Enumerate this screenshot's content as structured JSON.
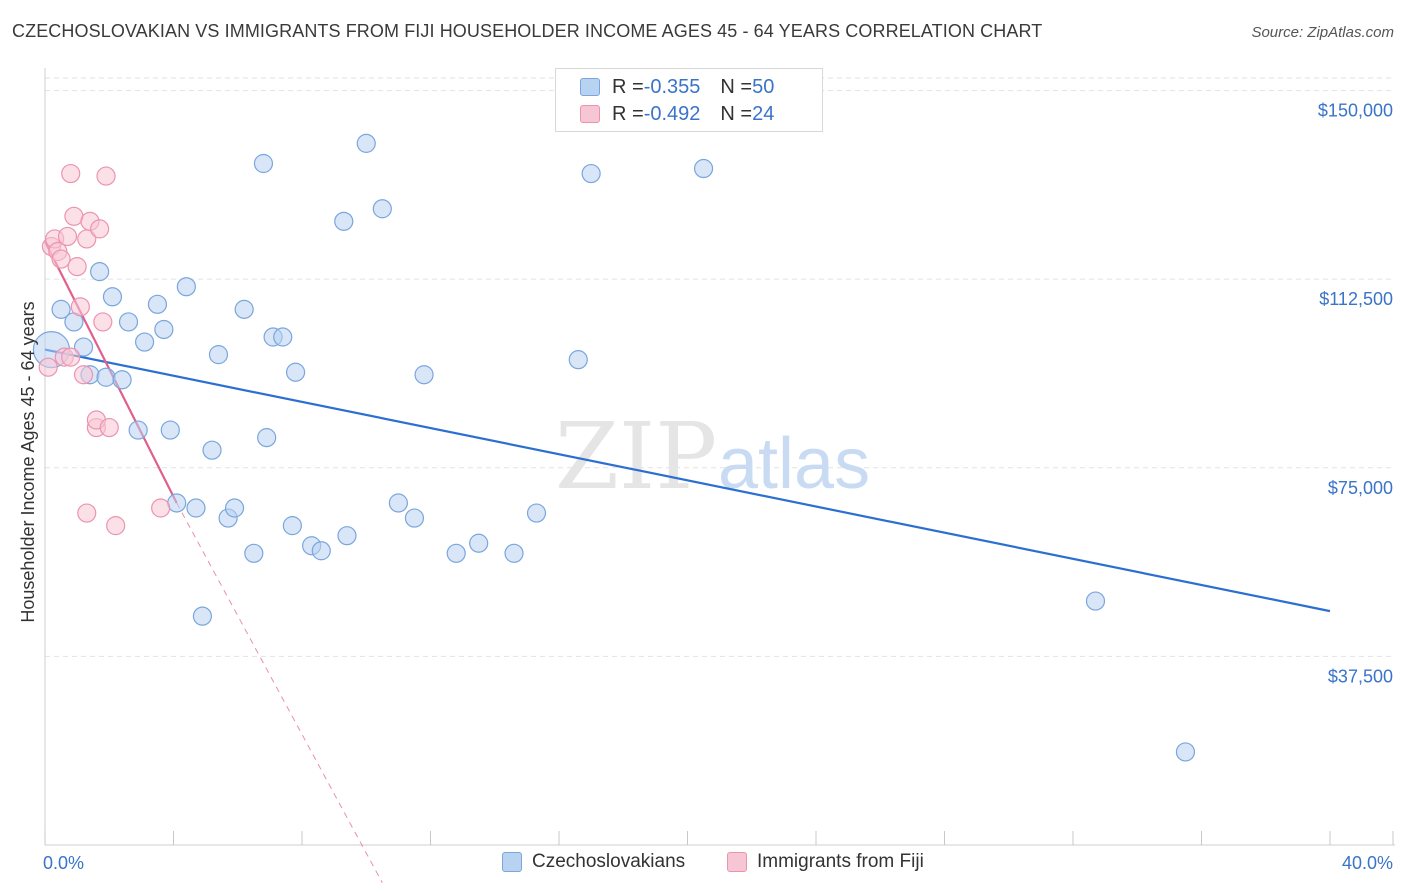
{
  "title": "CZECHOSLOVAKIAN VS IMMIGRANTS FROM FIJI HOUSEHOLDER INCOME AGES 45 - 64 YEARS CORRELATION CHART",
  "source": "Source: ZipAtlas.com",
  "watermark": {
    "zip": "ZIP",
    "atlas": "atlas"
  },
  "colors": {
    "blue_fill": "#b8d2f2",
    "blue_stroke": "#7aa6dc",
    "blue_line": "#2b6fd1",
    "pink_fill": "#f7c6d5",
    "pink_stroke": "#ec93b0",
    "pink_line": "#e0608c",
    "axis_text": "#3a74c9",
    "grid": "#e2e2e2"
  },
  "legend": {
    "series1": {
      "r_label": "R = ",
      "r_value": "-0.355",
      "n_label": "N = ",
      "n_value": "50"
    },
    "series2": {
      "r_label": "R = ",
      "r_value": "-0.492",
      "n_label": "N = ",
      "n_value": "24"
    }
  },
  "bottom_legend": {
    "series1": "Czechoslovakians",
    "series2": "Immigrants from Fiji"
  },
  "chart_data": {
    "type": "scatter",
    "ylabel": "Householder Income Ages 45 - 64 years",
    "xlabel": "",
    "xlim": [
      0,
      40
    ],
    "ylim": [
      0,
      152500
    ],
    "x_tick_labels": [
      "0.0%",
      "40.0%"
    ],
    "x_tick_marks": [
      0,
      4,
      8,
      12,
      16,
      20,
      24,
      28,
      32,
      36,
      40
    ],
    "y_ticks": [
      {
        "value": 150000,
        "label": "$150,000"
      },
      {
        "value": 112500,
        "label": "$112,500"
      },
      {
        "value": 75000,
        "label": "$75,000"
      },
      {
        "value": 37500,
        "label": "$37,500"
      }
    ],
    "series": [
      {
        "name": "Czechoslovakians",
        "color": "blue",
        "points": [
          [
            0.2,
            98500,
            24
          ],
          [
            0.5,
            106500,
            12
          ],
          [
            0.9,
            104000,
            12
          ],
          [
            1.2,
            99000,
            12
          ],
          [
            1.4,
            93500,
            12
          ],
          [
            1.7,
            114000,
            12
          ],
          [
            1.9,
            93000,
            12
          ],
          [
            2.1,
            109000,
            12
          ],
          [
            2.4,
            92500,
            12
          ],
          [
            2.6,
            104000,
            12
          ],
          [
            2.9,
            82500,
            12
          ],
          [
            3.1,
            100000,
            12
          ],
          [
            3.5,
            107500,
            12
          ],
          [
            3.7,
            102500,
            12
          ],
          [
            3.9,
            82500,
            12
          ],
          [
            4.1,
            68000,
            12
          ],
          [
            4.4,
            111000,
            12
          ],
          [
            4.7,
            67000,
            12
          ],
          [
            4.9,
            45500,
            12
          ],
          [
            5.2,
            78500,
            12
          ],
          [
            5.4,
            97500,
            12
          ],
          [
            5.7,
            65000,
            12
          ],
          [
            5.9,
            67000,
            12
          ],
          [
            6.2,
            106500,
            12
          ],
          [
            6.5,
            58000,
            12
          ],
          [
            6.8,
            135500,
            12
          ],
          [
            6.9,
            81000,
            12
          ],
          [
            7.1,
            101000,
            12
          ],
          [
            7.4,
            101000,
            12
          ],
          [
            7.7,
            63500,
            12
          ],
          [
            7.8,
            94000,
            12
          ],
          [
            8.3,
            59500,
            12
          ],
          [
            8.6,
            58500,
            12
          ],
          [
            9.3,
            124000,
            12
          ],
          [
            9.4,
            61500,
            12
          ],
          [
            10.0,
            139500,
            12
          ],
          [
            10.5,
            126500,
            12
          ],
          [
            11.0,
            68000,
            12
          ],
          [
            11.5,
            65000,
            12
          ],
          [
            11.8,
            93500,
            12
          ],
          [
            12.8,
            58000,
            12
          ],
          [
            13.5,
            60000,
            12
          ],
          [
            14.6,
            58000,
            12
          ],
          [
            15.3,
            66000,
            12
          ],
          [
            16.6,
            96500,
            12
          ],
          [
            17.0,
            133500,
            12
          ],
          [
            20.5,
            134500,
            12
          ],
          [
            32.7,
            48500,
            12
          ],
          [
            35.5,
            18500,
            12
          ]
        ]
      },
      {
        "name": "Immigrants from Fiji",
        "color": "pink",
        "points": [
          [
            0.1,
            95000,
            12
          ],
          [
            0.2,
            119000,
            12
          ],
          [
            0.3,
            120500,
            12
          ],
          [
            0.4,
            118000,
            12
          ],
          [
            0.5,
            116500,
            12
          ],
          [
            0.6,
            97000,
            12
          ],
          [
            0.7,
            121000,
            12
          ],
          [
            0.8,
            97000,
            12
          ],
          [
            0.8,
            133500,
            12
          ],
          [
            0.9,
            125000,
            12
          ],
          [
            1.0,
            115000,
            12
          ],
          [
            1.1,
            107000,
            12
          ],
          [
            1.2,
            93500,
            12
          ],
          [
            1.3,
            66000,
            12
          ],
          [
            1.3,
            120500,
            12
          ],
          [
            1.4,
            124000,
            12
          ],
          [
            1.6,
            83000,
            12
          ],
          [
            1.6,
            84500,
            12
          ],
          [
            1.7,
            122500,
            12
          ],
          [
            1.8,
            104000,
            12
          ],
          [
            1.9,
            133000,
            12
          ],
          [
            2.0,
            83000,
            12
          ],
          [
            2.2,
            63500,
            12
          ],
          [
            3.6,
            67000,
            12
          ]
        ]
      }
    ],
    "trend_lines": [
      {
        "series": "Czechoslovakians",
        "x1": 0,
        "y1": 98500,
        "x2": 40,
        "y2": 46500,
        "style": "solid"
      },
      {
        "series": "Immigrants from Fiji",
        "x1": 0,
        "y1": 120000,
        "x2": 4.1,
        "y2": 68000,
        "style": "solid"
      },
      {
        "series": "Immigrants from Fiji",
        "x1": 4.1,
        "y1": 68000,
        "x2": 10.5,
        "y2": -7500,
        "style": "dashed"
      }
    ]
  }
}
